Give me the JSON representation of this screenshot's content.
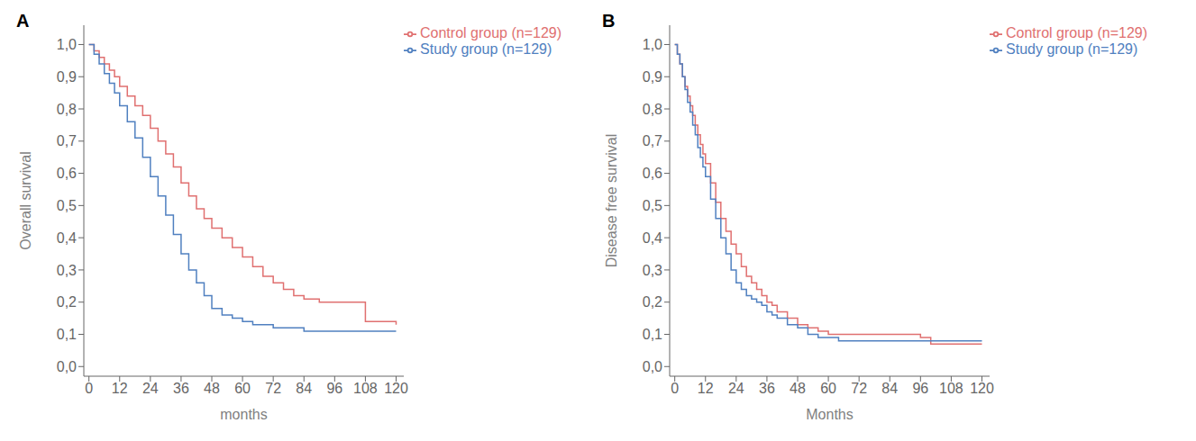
{
  "chart_data": [
    {
      "type": "step",
      "title": "A",
      "xlabel": "months",
      "ylabel": "Overall survival",
      "series": [
        {
          "name": "Control group (n=129)",
          "color": "#E07070",
          "x": [
            0,
            2,
            4,
            6,
            8,
            10,
            12,
            15,
            18,
            21,
            24,
            27,
            30,
            33,
            36,
            39,
            42,
            45,
            48,
            52,
            56,
            60,
            64,
            68,
            72,
            76,
            80,
            84,
            90,
            96,
            100,
            108,
            112,
            120
          ],
          "values": [
            1.0,
            0.98,
            0.96,
            0.94,
            0.92,
            0.9,
            0.87,
            0.84,
            0.81,
            0.78,
            0.74,
            0.7,
            0.66,
            0.62,
            0.57,
            0.53,
            0.49,
            0.46,
            0.43,
            0.4,
            0.37,
            0.34,
            0.31,
            0.28,
            0.26,
            0.24,
            0.22,
            0.21,
            0.2,
            0.2,
            0.2,
            0.14,
            0.14,
            0.13
          ]
        },
        {
          "name": "Study group (n=129)",
          "color": "#5080C0",
          "x": [
            0,
            2,
            4,
            6,
            8,
            10,
            12,
            15,
            18,
            21,
            24,
            27,
            30,
            33,
            36,
            39,
            42,
            45,
            48,
            52,
            56,
            60,
            64,
            72,
            76,
            84,
            96,
            108,
            120
          ],
          "values": [
            1.0,
            0.97,
            0.94,
            0.91,
            0.88,
            0.85,
            0.81,
            0.76,
            0.71,
            0.65,
            0.59,
            0.53,
            0.47,
            0.41,
            0.35,
            0.3,
            0.26,
            0.22,
            0.18,
            0.16,
            0.15,
            0.14,
            0.13,
            0.12,
            0.12,
            0.11,
            0.11,
            0.11,
            0.11
          ]
        }
      ],
      "xlim": [
        -2,
        123
      ],
      "ylim": [
        -0.03,
        1.06
      ],
      "xticks": [
        0,
        12,
        24,
        36,
        48,
        60,
        72,
        84,
        96,
        108,
        120
      ],
      "yticks": [
        {
          "value": 0.0,
          "label": "0,0"
        },
        {
          "value": 0.1,
          "label": "0,1"
        },
        {
          "value": 0.2,
          "label": "0,2"
        },
        {
          "value": 0.3,
          "label": "0,3"
        },
        {
          "value": 0.4,
          "label": "0,4"
        },
        {
          "value": 0.5,
          "label": "0,5"
        },
        {
          "value": 0.6,
          "label": "0,6"
        },
        {
          "value": 0.7,
          "label": "0,7"
        },
        {
          "value": 0.8,
          "label": "0,8"
        },
        {
          "value": 0.9,
          "label": "0,9"
        },
        {
          "value": 1.0,
          "label": "1,0"
        }
      ],
      "grid": false,
      "legend": "upper right"
    },
    {
      "type": "step",
      "title": "B",
      "xlabel": "Months",
      "ylabel": "Disease free survival",
      "series": [
        {
          "name": "Control group (n=129)",
          "color": "#E07070",
          "x": [
            0,
            1,
            2,
            3,
            4,
            5,
            6,
            7,
            8,
            9,
            10,
            11,
            12,
            14,
            16,
            18,
            20,
            22,
            24,
            26,
            28,
            30,
            32,
            34,
            36,
            38,
            40,
            44,
            48,
            52,
            56,
            60,
            64,
            72,
            96,
            100,
            108,
            120
          ],
          "values": [
            1.0,
            0.97,
            0.94,
            0.9,
            0.87,
            0.84,
            0.81,
            0.78,
            0.75,
            0.72,
            0.69,
            0.66,
            0.63,
            0.57,
            0.51,
            0.46,
            0.42,
            0.38,
            0.35,
            0.31,
            0.28,
            0.26,
            0.24,
            0.22,
            0.2,
            0.19,
            0.17,
            0.15,
            0.13,
            0.12,
            0.11,
            0.1,
            0.1,
            0.1,
            0.09,
            0.07,
            0.07,
            0.07
          ]
        },
        {
          "name": "Study group (n=129)",
          "color": "#5080C0",
          "x": [
            0,
            1,
            2,
            3,
            4,
            5,
            6,
            7,
            8,
            9,
            10,
            11,
            12,
            14,
            16,
            18,
            20,
            22,
            24,
            26,
            28,
            30,
            32,
            34,
            36,
            38,
            40,
            44,
            48,
            52,
            56,
            60,
            64,
            72,
            96,
            108,
            120
          ],
          "values": [
            1.0,
            0.97,
            0.94,
            0.9,
            0.86,
            0.82,
            0.79,
            0.75,
            0.72,
            0.68,
            0.65,
            0.62,
            0.59,
            0.52,
            0.46,
            0.4,
            0.35,
            0.3,
            0.26,
            0.24,
            0.22,
            0.21,
            0.2,
            0.19,
            0.17,
            0.16,
            0.15,
            0.13,
            0.12,
            0.1,
            0.09,
            0.09,
            0.08,
            0.08,
            0.08,
            0.08,
            0.08
          ]
        }
      ],
      "xlim": [
        -2,
        123
      ],
      "ylim": [
        -0.03,
        1.06
      ],
      "xticks": [
        0,
        12,
        24,
        36,
        48,
        60,
        72,
        84,
        96,
        108,
        120
      ],
      "yticks": [
        {
          "value": 0.0,
          "label": "0,0"
        },
        {
          "value": 0.1,
          "label": "0,1"
        },
        {
          "value": 0.2,
          "label": "0,2"
        },
        {
          "value": 0.3,
          "label": "0,3"
        },
        {
          "value": 0.4,
          "label": "0,4"
        },
        {
          "value": 0.5,
          "label": "0,5"
        },
        {
          "value": 0.6,
          "label": "0,6"
        },
        {
          "value": 0.7,
          "label": "0,7"
        },
        {
          "value": 0.8,
          "label": "0,8"
        },
        {
          "value": 0.9,
          "label": "0,9"
        },
        {
          "value": 1.0,
          "label": "1,0"
        }
      ],
      "grid": false,
      "legend": "upper right"
    }
  ]
}
